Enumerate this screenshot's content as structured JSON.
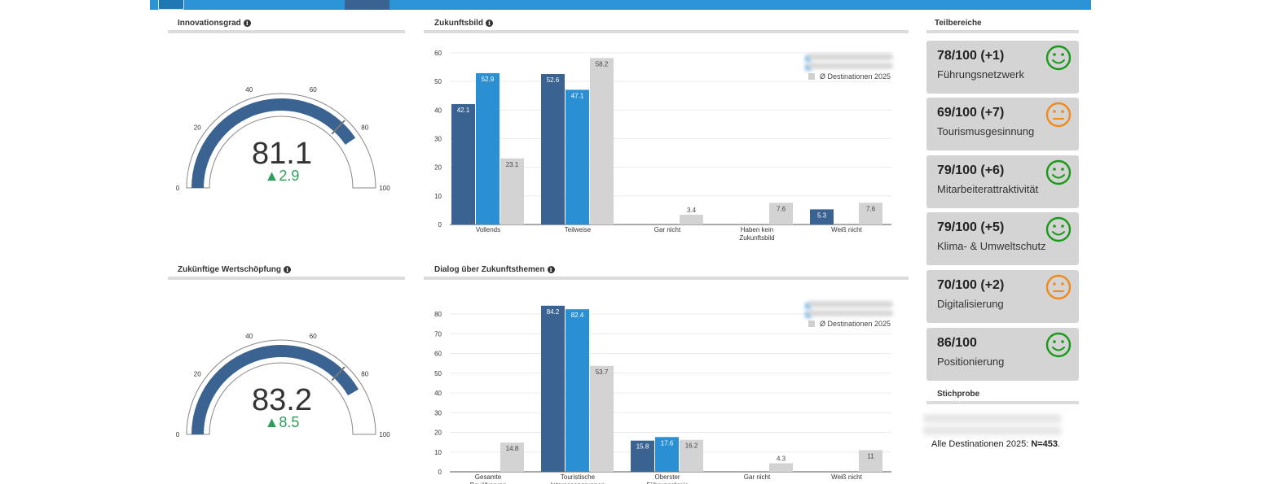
{
  "gauges": [
    {
      "id": "g1",
      "title": "Innovationsgrad",
      "value": "81.1",
      "delta": "▲2.9",
      "level": 0.811,
      "ticks": [
        "0",
        "20",
        "40",
        "60",
        "80",
        "100"
      ],
      "marker_level": 0.74
    },
    {
      "id": "g2",
      "title": "Zukünftige Wertschöpfung",
      "value": "83.2",
      "delta": "▲8.5",
      "level": 0.832,
      "ticks": [
        "0",
        "20",
        "40",
        "60",
        "80",
        "100"
      ],
      "marker_level": 0.74
    }
  ],
  "charts_meta": {
    "zukunft_title": "Zukunftsbild",
    "dialog_title": "Dialog über Zukunftsthemen",
    "legend_avg": "Ø Destinationen 2025"
  },
  "colors": {
    "dark": "#3a6391",
    "blue": "#2b8fd3",
    "grey": "#d3d3d3",
    "green": "#2e9e5b",
    "smile_green": "#1a9a1a",
    "smile_orange": "#f08a1c"
  },
  "chart_data": [
    {
      "type": "bar",
      "title": "Zukunftsbild",
      "categories": [
        "Vollends",
        "Teilweise",
        "Gar nicht",
        "Haben kein Zukunftsbild",
        "Weiß nicht"
      ],
      "ylim": [
        0,
        60
      ],
      "yticks": [
        0,
        10,
        20,
        30,
        40,
        50,
        60
      ],
      "grid": true,
      "legend": "top-right",
      "series": [
        {
          "values": [
            42.1,
            52.6,
            null,
            null,
            5.3
          ]
        },
        {
          "values": [
            52.9,
            47.1,
            null,
            null,
            null
          ]
        },
        {
          "name": "Ø Destinationen 2025",
          "values": [
            23.1,
            58.2,
            3.4,
            7.6,
            7.6
          ]
        }
      ]
    },
    {
      "type": "bar",
      "title": "Dialog über Zukunftsthemen",
      "categories": [
        "Gesamte Bevölkerung",
        "Touristische Interessengruppen",
        "Oberster Führungskreis",
        "Gar nicht",
        "Weiß nicht"
      ],
      "ylim": [
        0,
        80
      ],
      "yticks": [
        0,
        10,
        20,
        30,
        40,
        50,
        60,
        70,
        80
      ],
      "grid": true,
      "legend": "top-right",
      "series": [
        {
          "values": [
            null,
            84.2,
            15.8,
            null,
            null
          ]
        },
        {
          "values": [
            null,
            82.4,
            17.6,
            null,
            null
          ]
        },
        {
          "name": "Ø Destinationen 2025",
          "values": [
            14.8,
            53.7,
            16.2,
            4.3,
            11
          ]
        }
      ]
    }
  ],
  "teilbereiche": {
    "title": "Teilbereiche",
    "cards": [
      {
        "score": "78/100 (+1)",
        "label": "Führungsnetzwerk",
        "mood": "happy"
      },
      {
        "score": "69/100 (+7)",
        "label": "Tourismusgesinnung",
        "mood": "neutral"
      },
      {
        "score": "79/100 (+6)",
        "label": "Mitarbeiterattraktivität",
        "mood": "happy"
      },
      {
        "score": "79/100 (+5)",
        "label": "Klima- & Umweltschutz",
        "mood": "happy"
      },
      {
        "score": "70/100 (+2)",
        "label": "Digitalisierung",
        "mood": "neutral"
      },
      {
        "score": "86/100",
        "label": "Positionierung",
        "mood": "happy"
      }
    ]
  },
  "stichprobe": {
    "title": "Stichprobe",
    "text_prefix": "Alle Destinationen 2025: ",
    "text_value": "N=453",
    "text_suffix": "."
  }
}
